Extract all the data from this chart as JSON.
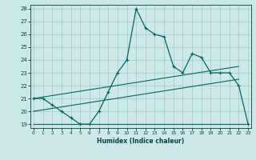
{
  "xlabel": "Humidex (Indice chaleur)",
  "x": [
    0,
    1,
    2,
    3,
    4,
    5,
    6,
    7,
    8,
    9,
    10,
    11,
    12,
    13,
    14,
    15,
    16,
    17,
    18,
    19,
    20,
    21,
    22,
    23
  ],
  "y_main": [
    21,
    21,
    20.5,
    20,
    19.5,
    19,
    19,
    20,
    21.5,
    23,
    24,
    28,
    26.5,
    26,
    25.8,
    23.5,
    23,
    24.5,
    24.2,
    23,
    23,
    23,
    22,
    19
  ],
  "ref_line1_x": [
    0,
    22
  ],
  "ref_line1_y": [
    21.0,
    23.5
  ],
  "ref_line2_x": [
    0,
    22
  ],
  "ref_line2_y": [
    20.0,
    22.5
  ],
  "ref_line3_x": [
    0,
    23
  ],
  "ref_line3_y": [
    19.0,
    19.0
  ],
  "xlim": [
    -0.3,
    23.3
  ],
  "ylim": [
    18.7,
    28.3
  ],
  "yticks": [
    19,
    20,
    21,
    22,
    23,
    24,
    25,
    26,
    27,
    28
  ],
  "xticks": [
    0,
    1,
    2,
    3,
    4,
    5,
    6,
    7,
    8,
    9,
    10,
    11,
    12,
    13,
    14,
    15,
    16,
    17,
    18,
    19,
    20,
    21,
    22,
    23
  ],
  "bg_color": "#cde8e8",
  "grid_color": "#a0c8c8",
  "line_color": "#006666",
  "tick_color": "#004444",
  "figsize": [
    3.2,
    2.0
  ],
  "dpi": 100
}
